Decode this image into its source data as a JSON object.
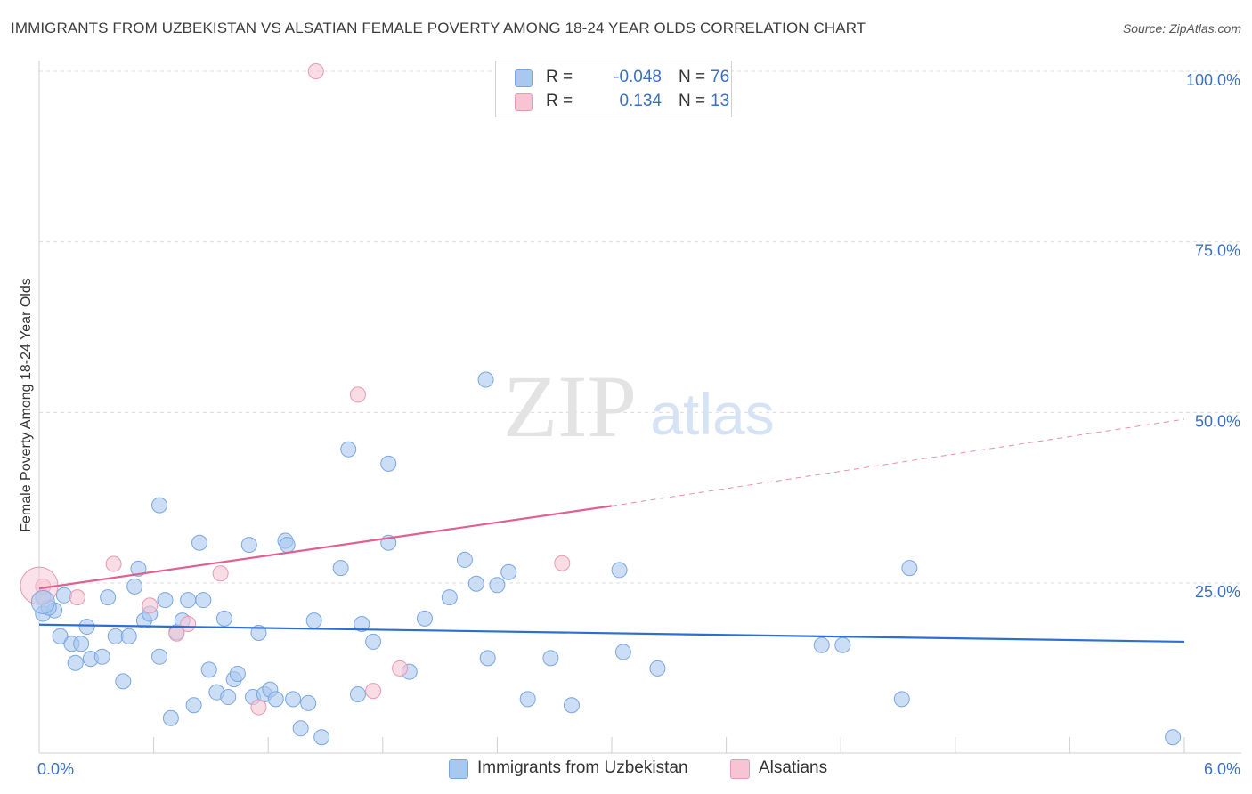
{
  "title": "IMMIGRANTS FROM UZBEKISTAN VS ALSATIAN FEMALE POVERTY AMONG 18-24 YEAR OLDS CORRELATION CHART",
  "source": "Source: ZipAtlas.com",
  "watermark": {
    "zip": "ZIP",
    "atlas": "atlas"
  },
  "stats": [
    {
      "r_label": "R =",
      "r_value": "-0.048",
      "n_label": "N =",
      "n_value": "76",
      "color": "#a9c8f0",
      "border": "#7aa6e0"
    },
    {
      "r_label": "R =",
      "r_value": "0.134",
      "n_label": "N =",
      "n_value": "13",
      "color": "#f7c4d4",
      "border": "#e898b2"
    }
  ],
  "legend": [
    {
      "label": "Immigrants from Uzbekistan",
      "color": "#a9c8f0",
      "border": "#7aa6e0"
    },
    {
      "label": "Alsatians",
      "color": "#f7c4d4",
      "border": "#e898b2"
    }
  ],
  "chart_data": {
    "type": "scatter",
    "xlabel": "",
    "ylabel": "Female Poverty Among 18-24 Year Olds",
    "xlim": [
      0,
      6
    ],
    "ylim": [
      0,
      102
    ],
    "x_tick_labels": [
      {
        "value": 0,
        "label": "0.0%"
      },
      {
        "value": 6,
        "label": "6.0%"
      }
    ],
    "y_tick_labels": [
      {
        "value": 25,
        "label": "25.0%"
      },
      {
        "value": 50,
        "label": "50.0%"
      },
      {
        "value": 75,
        "label": "75.0%"
      },
      {
        "value": 100,
        "label": "100.0%"
      }
    ],
    "grid": true,
    "series": [
      {
        "name": "Immigrants from Uzbekistan",
        "color": "#a9c8f0",
        "stroke": "#7aa6e0",
        "trend_color": "#2c6fd0",
        "trend": {
          "x": [
            0,
            6
          ],
          "y": [
            18.9,
            16.4
          ]
        },
        "points": [
          [
            0.02,
            20.5
          ],
          [
            0.08,
            21.0
          ],
          [
            0.13,
            23.2
          ],
          [
            0.11,
            17.2
          ],
          [
            0.17,
            16.1
          ],
          [
            0.19,
            13.3
          ],
          [
            0.22,
            16.1
          ],
          [
            0.25,
            18.6
          ],
          [
            0.27,
            13.9
          ],
          [
            0.33,
            14.2
          ],
          [
            0.36,
            22.9
          ],
          [
            0.4,
            17.2
          ],
          [
            0.44,
            10.6
          ],
          [
            0.47,
            17.2
          ],
          [
            0.5,
            24.5
          ],
          [
            0.52,
            27.1
          ],
          [
            0.55,
            19.5
          ],
          [
            0.58,
            20.5
          ],
          [
            0.63,
            14.2
          ],
          [
            0.63,
            36.4
          ],
          [
            0.66,
            22.5
          ],
          [
            0.69,
            5.2
          ],
          [
            0.72,
            17.8
          ],
          [
            0.75,
            19.5
          ],
          [
            0.78,
            22.5
          ],
          [
            0.81,
            7.1
          ],
          [
            0.84,
            30.9
          ],
          [
            0.86,
            22.5
          ],
          [
            0.89,
            12.3
          ],
          [
            0.93,
            9.0
          ],
          [
            0.97,
            19.8
          ],
          [
            0.99,
            8.3
          ],
          [
            1.02,
            10.9
          ],
          [
            1.04,
            11.7
          ],
          [
            1.1,
            30.6
          ],
          [
            1.12,
            8.3
          ],
          [
            1.15,
            17.7
          ],
          [
            1.18,
            8.7
          ],
          [
            1.21,
            9.4
          ],
          [
            1.24,
            8.0
          ],
          [
            1.29,
            31.2
          ],
          [
            1.3,
            30.6
          ],
          [
            1.33,
            8.0
          ],
          [
            1.37,
            3.7
          ],
          [
            1.41,
            7.4
          ],
          [
            1.44,
            19.5
          ],
          [
            1.48,
            2.4
          ],
          [
            1.58,
            27.2
          ],
          [
            1.62,
            44.6
          ],
          [
            1.67,
            8.7
          ],
          [
            1.69,
            19.0
          ],
          [
            1.75,
            16.4
          ],
          [
            1.83,
            42.5
          ],
          [
            1.83,
            30.9
          ],
          [
            1.94,
            12.0
          ],
          [
            2.02,
            19.8
          ],
          [
            2.15,
            22.9
          ],
          [
            2.23,
            28.4
          ],
          [
            2.29,
            24.9
          ],
          [
            2.34,
            54.8
          ],
          [
            2.35,
            14.0
          ],
          [
            2.4,
            24.7
          ],
          [
            2.46,
            26.6
          ],
          [
            2.56,
            8.0
          ],
          [
            2.68,
            14.0
          ],
          [
            2.79,
            7.1
          ],
          [
            3.04,
            26.9
          ],
          [
            3.06,
            14.9
          ],
          [
            3.24,
            12.5
          ],
          [
            4.1,
            15.9
          ],
          [
            4.21,
            15.9
          ],
          [
            4.52,
            8.0
          ],
          [
            4.56,
            27.2
          ],
          [
            5.94,
            2.4
          ],
          [
            0.05,
            21.4
          ],
          [
            0.02,
            23.0
          ]
        ]
      },
      {
        "name": "Alsatians",
        "color": "#f7c4d4",
        "stroke": "#e898b2",
        "trend_color": "#e0608f",
        "trend": {
          "x": [
            0,
            3.0
          ],
          "y": [
            24.2,
            36.3
          ]
        },
        "trend_dashed": {
          "x": [
            3.0,
            6
          ],
          "y": [
            36.3,
            49.0
          ]
        },
        "points": [
          [
            0.02,
            24.5
          ],
          [
            0.2,
            22.9
          ],
          [
            0.39,
            27.8
          ],
          [
            0.58,
            21.7
          ],
          [
            0.72,
            17.6
          ],
          [
            0.78,
            19.0
          ],
          [
            0.95,
            26.4
          ],
          [
            1.15,
            6.8
          ],
          [
            1.45,
            100.0
          ],
          [
            1.67,
            52.6
          ],
          [
            1.75,
            9.2
          ],
          [
            1.89,
            12.5
          ],
          [
            2.74,
            27.9
          ]
        ]
      }
    ]
  }
}
